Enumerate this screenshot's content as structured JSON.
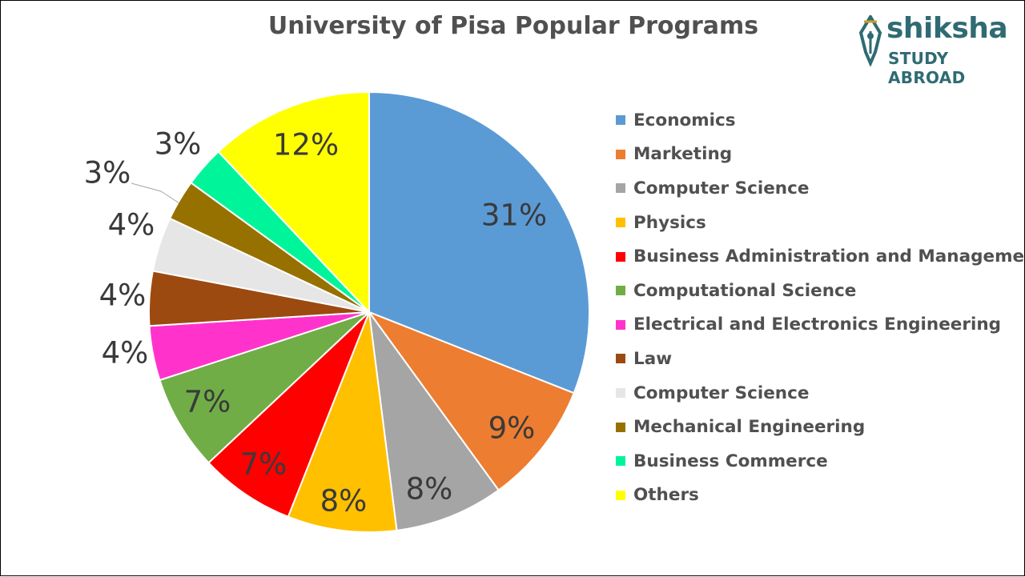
{
  "chart_data": {
    "type": "pie",
    "title": "University of Pisa Popular Programs",
    "categories": [
      "Economics",
      "Marketing",
      "Computer Science",
      "Physics",
      "Business Administration and Management",
      "Computational Science",
      "Electrical and Electronics Engineering",
      "Law",
      "Computer Science",
      "Mechanical Engineering",
      "Business Commerce",
      "Others"
    ],
    "values": [
      31,
      9,
      8,
      8,
      7,
      7,
      4,
      4,
      4,
      3,
      3,
      12
    ],
    "data_labels": [
      "31%",
      "9%",
      "8%",
      "8%",
      "7%",
      "7%",
      "4%",
      "4%",
      "4%",
      "3%",
      "3%",
      "12%"
    ],
    "colors": [
      "#5b9bd5",
      "#ed7d31",
      "#a5a5a5",
      "#ffc000",
      "#ff0000",
      "#70ad47",
      "#ff33cc",
      "#9c4a0f",
      "#e7e6e6",
      "#977100",
      "#00f59a",
      "#ffff00"
    ],
    "legend": "right"
  },
  "logo": {
    "brand": "shiksha",
    "tagline": "STUDY ABROAD",
    "color": "#2f6b73"
  }
}
